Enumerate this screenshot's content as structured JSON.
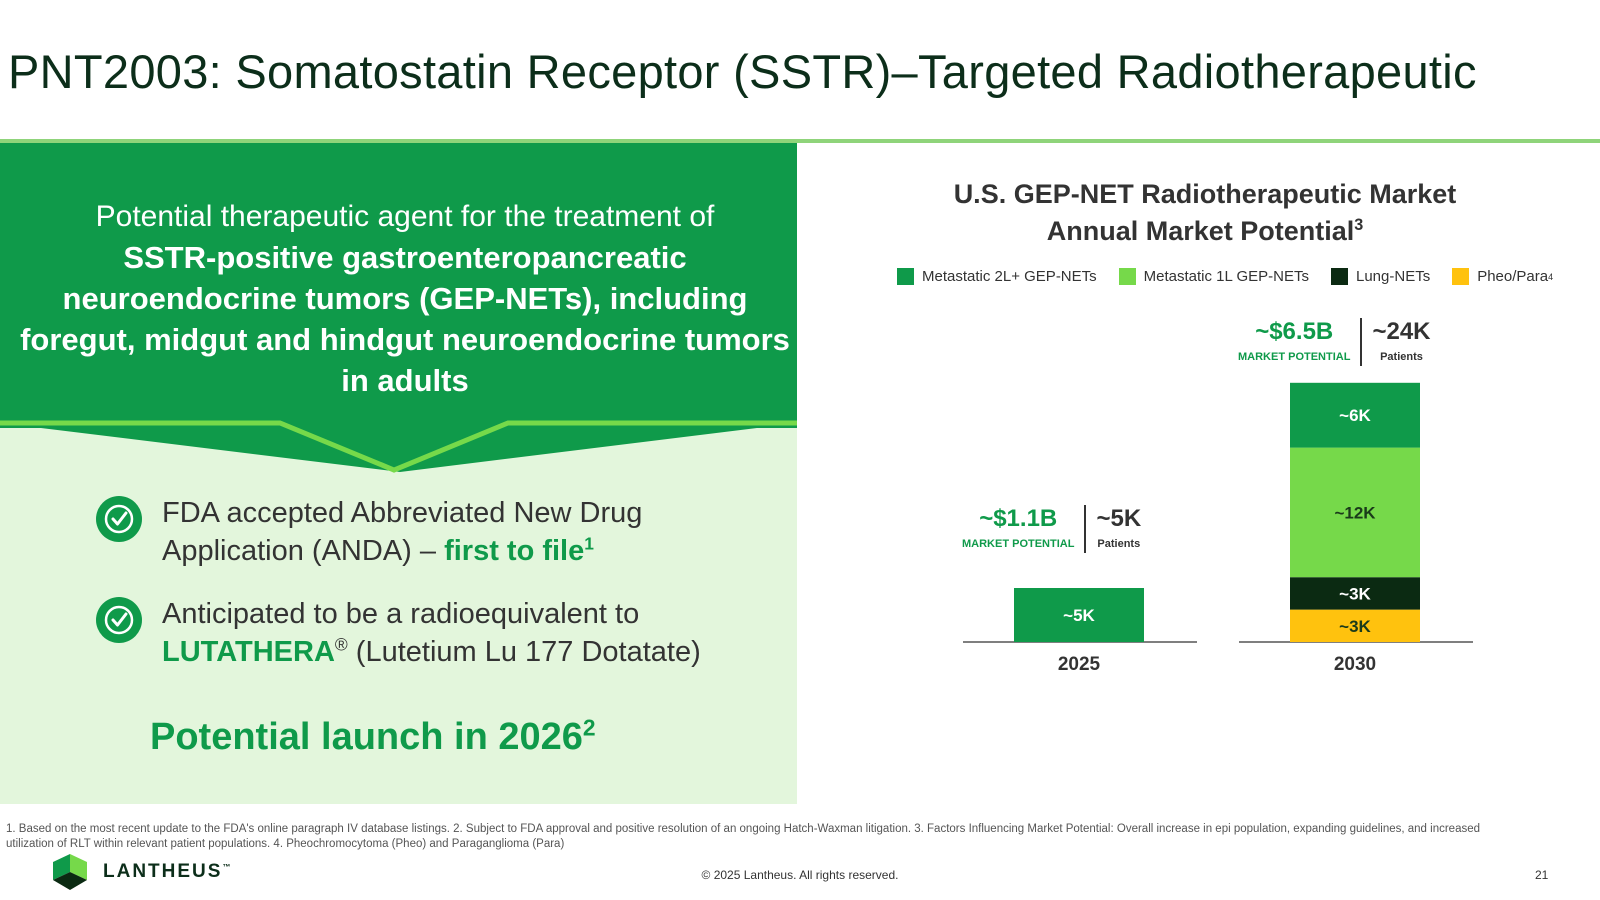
{
  "slide": {
    "title": "PNT2003: Somatostatin Receptor (SSTR)–Targeted Radiotherapeutic",
    "page_number": "21",
    "copyright": "© 2025 Lantheus. All rights reserved.",
    "logo_text": "LANTHEUS",
    "logo_trademark": "™"
  },
  "left_panel": {
    "intro_lead": "Potential therapeutic agent for the treatment of",
    "intro_strong": "SSTR-positive gastroenteropancreatic neuroendocrine tumors (GEP-NETs), including foregut, midgut and hindgut neuroendocrine tumors in adults",
    "bullets": [
      {
        "text_pre": "FDA accepted Abbreviated New Drug Application (ANDA) – ",
        "text_hl": "first to file",
        "sup": "1",
        "text_post": ""
      },
      {
        "text_pre": "Anticipated to be a radioequivalent to ",
        "text_hl": "LUTATHERA",
        "sup": "®",
        "text_post": " (Lutetium Lu 177 Dotatate)"
      }
    ],
    "launch_text": "Potential launch in 2026",
    "launch_sup": "2"
  },
  "chart_data": {
    "type": "bar",
    "stacked": true,
    "title": "U.S. GEP-NET Radiotherapeutic Market",
    "subtitle": "Annual Market Potential",
    "title_sup": "3",
    "unit": "K patients",
    "categories": [
      "2025",
      "2030"
    ],
    "legend_placement": "top",
    "series": [
      {
        "name": "Pheo/Para",
        "name_sup": "4",
        "color": "#ffc20e",
        "values": [
          0,
          3
        ],
        "labels": [
          "",
          "~3K"
        ]
      },
      {
        "name": "Lung-NETs",
        "color": "#0b2a12",
        "values": [
          0,
          3
        ],
        "labels": [
          "",
          "~3K"
        ]
      },
      {
        "name": "Metastatic 1L GEP-NETs",
        "color": "#76d94a",
        "values": [
          0,
          12
        ],
        "labels": [
          "",
          "~12K"
        ]
      },
      {
        "name": "Metastatic 2L+ GEP-NETs",
        "color": "#0f9a4a",
        "values": [
          5,
          6
        ],
        "labels": [
          "~5K",
          "~6K"
        ]
      }
    ],
    "legend_order": [
      "Metastatic 2L+ GEP-NETs",
      "Metastatic 1L GEP-NETs",
      "Lung-NETs",
      "Pheo/Para"
    ],
    "annotations": [
      {
        "category": "2025",
        "market": "~$1.1B",
        "market_label": "MARKET POTENTIAL",
        "patients": "~5K",
        "patients_label": "Patients"
      },
      {
        "category": "2030",
        "market": "~$6.5B",
        "market_label": "MARKET POTENTIAL",
        "patients": "~24K",
        "patients_label": "Patients"
      }
    ],
    "grid": false
  },
  "footnote": "1. Based on the most recent update to the FDA's online paragraph IV database listings. 2. Subject to FDA approval and positive resolution of an ongoing Hatch-Waxman litigation. 3. Factors Influencing Market Potential: Overall increase in epi population, expanding guidelines, and increased utilization of RLT within relevant patient populations. 4. Pheochromocytoma (Pheo) and Paraganglioma (Para)",
  "colors": {
    "brand_green": "#0f9a4a",
    "light_green_bg": "#e3f6dc",
    "accent_rule": "#8fd47a",
    "dark_text": "#0c2e1a"
  }
}
